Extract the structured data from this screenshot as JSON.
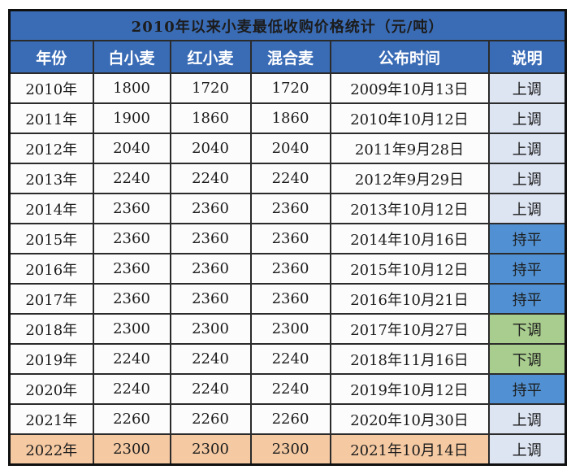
{
  "chart_data": {
    "type": "table",
    "title": "2010年以来小麦最低收购价格统计（元/吨）",
    "columns": [
      "年份",
      "白小麦",
      "红小麦",
      "混合麦",
      "公布时间",
      "说明"
    ],
    "rows": [
      {
        "cells": [
          "2010年",
          "1800",
          "1720",
          "1720",
          "2009年10月13日",
          "上调"
        ],
        "note_type": "up",
        "highlight": false
      },
      {
        "cells": [
          "2011年",
          "1900",
          "1860",
          "1860",
          "2010年10月12日",
          "上调"
        ],
        "note_type": "up",
        "highlight": false
      },
      {
        "cells": [
          "2012年",
          "2040",
          "2040",
          "2040",
          "2011年9月28日",
          "上调"
        ],
        "note_type": "up",
        "highlight": false
      },
      {
        "cells": [
          "2013年",
          "2240",
          "2240",
          "2240",
          "2012年9月29日",
          "上调"
        ],
        "note_type": "up",
        "highlight": false
      },
      {
        "cells": [
          "2014年",
          "2360",
          "2360",
          "2360",
          "2013年10月12日",
          "上调"
        ],
        "note_type": "up",
        "highlight": false
      },
      {
        "cells": [
          "2015年",
          "2360",
          "2360",
          "2360",
          "2014年10月16日",
          "持平"
        ],
        "note_type": "flat",
        "highlight": false
      },
      {
        "cells": [
          "2016年",
          "2360",
          "2360",
          "2360",
          "2015年10月12日",
          "持平"
        ],
        "note_type": "flat",
        "highlight": false
      },
      {
        "cells": [
          "2017年",
          "2360",
          "2360",
          "2360",
          "2016年10月21日",
          "持平"
        ],
        "note_type": "flat",
        "highlight": false
      },
      {
        "cells": [
          "2018年",
          "2300",
          "2300",
          "2300",
          "2017年10月27日",
          "下调"
        ],
        "note_type": "down",
        "highlight": false
      },
      {
        "cells": [
          "2019年",
          "2240",
          "2240",
          "2240",
          "2018年11月16日",
          "下调"
        ],
        "note_type": "down",
        "highlight": false
      },
      {
        "cells": [
          "2020年",
          "2240",
          "2240",
          "2240",
          "2019年10月12日",
          "持平"
        ],
        "note_type": "flat",
        "highlight": false
      },
      {
        "cells": [
          "2021年",
          "2260",
          "2260",
          "2260",
          "2020年10月30日",
          "上调"
        ],
        "note_type": "up",
        "highlight": false
      },
      {
        "cells": [
          "2022年",
          "2300",
          "2300",
          "2300",
          "2021年10月14日",
          "上调"
        ],
        "note_type": "up",
        "highlight": true
      }
    ],
    "legend_notes": {
      "up": "上调",
      "flat": "持平",
      "down": "下调"
    }
  },
  "colors": {
    "header_blue": "#3a6cb6",
    "up_bg": "#dde4f2",
    "up_text": "#e0495c",
    "flat_bg": "#5191d3",
    "down_bg": "#a9cd8e",
    "highlight_bg": "#f5c9a2",
    "border": "#2b2b2b"
  }
}
